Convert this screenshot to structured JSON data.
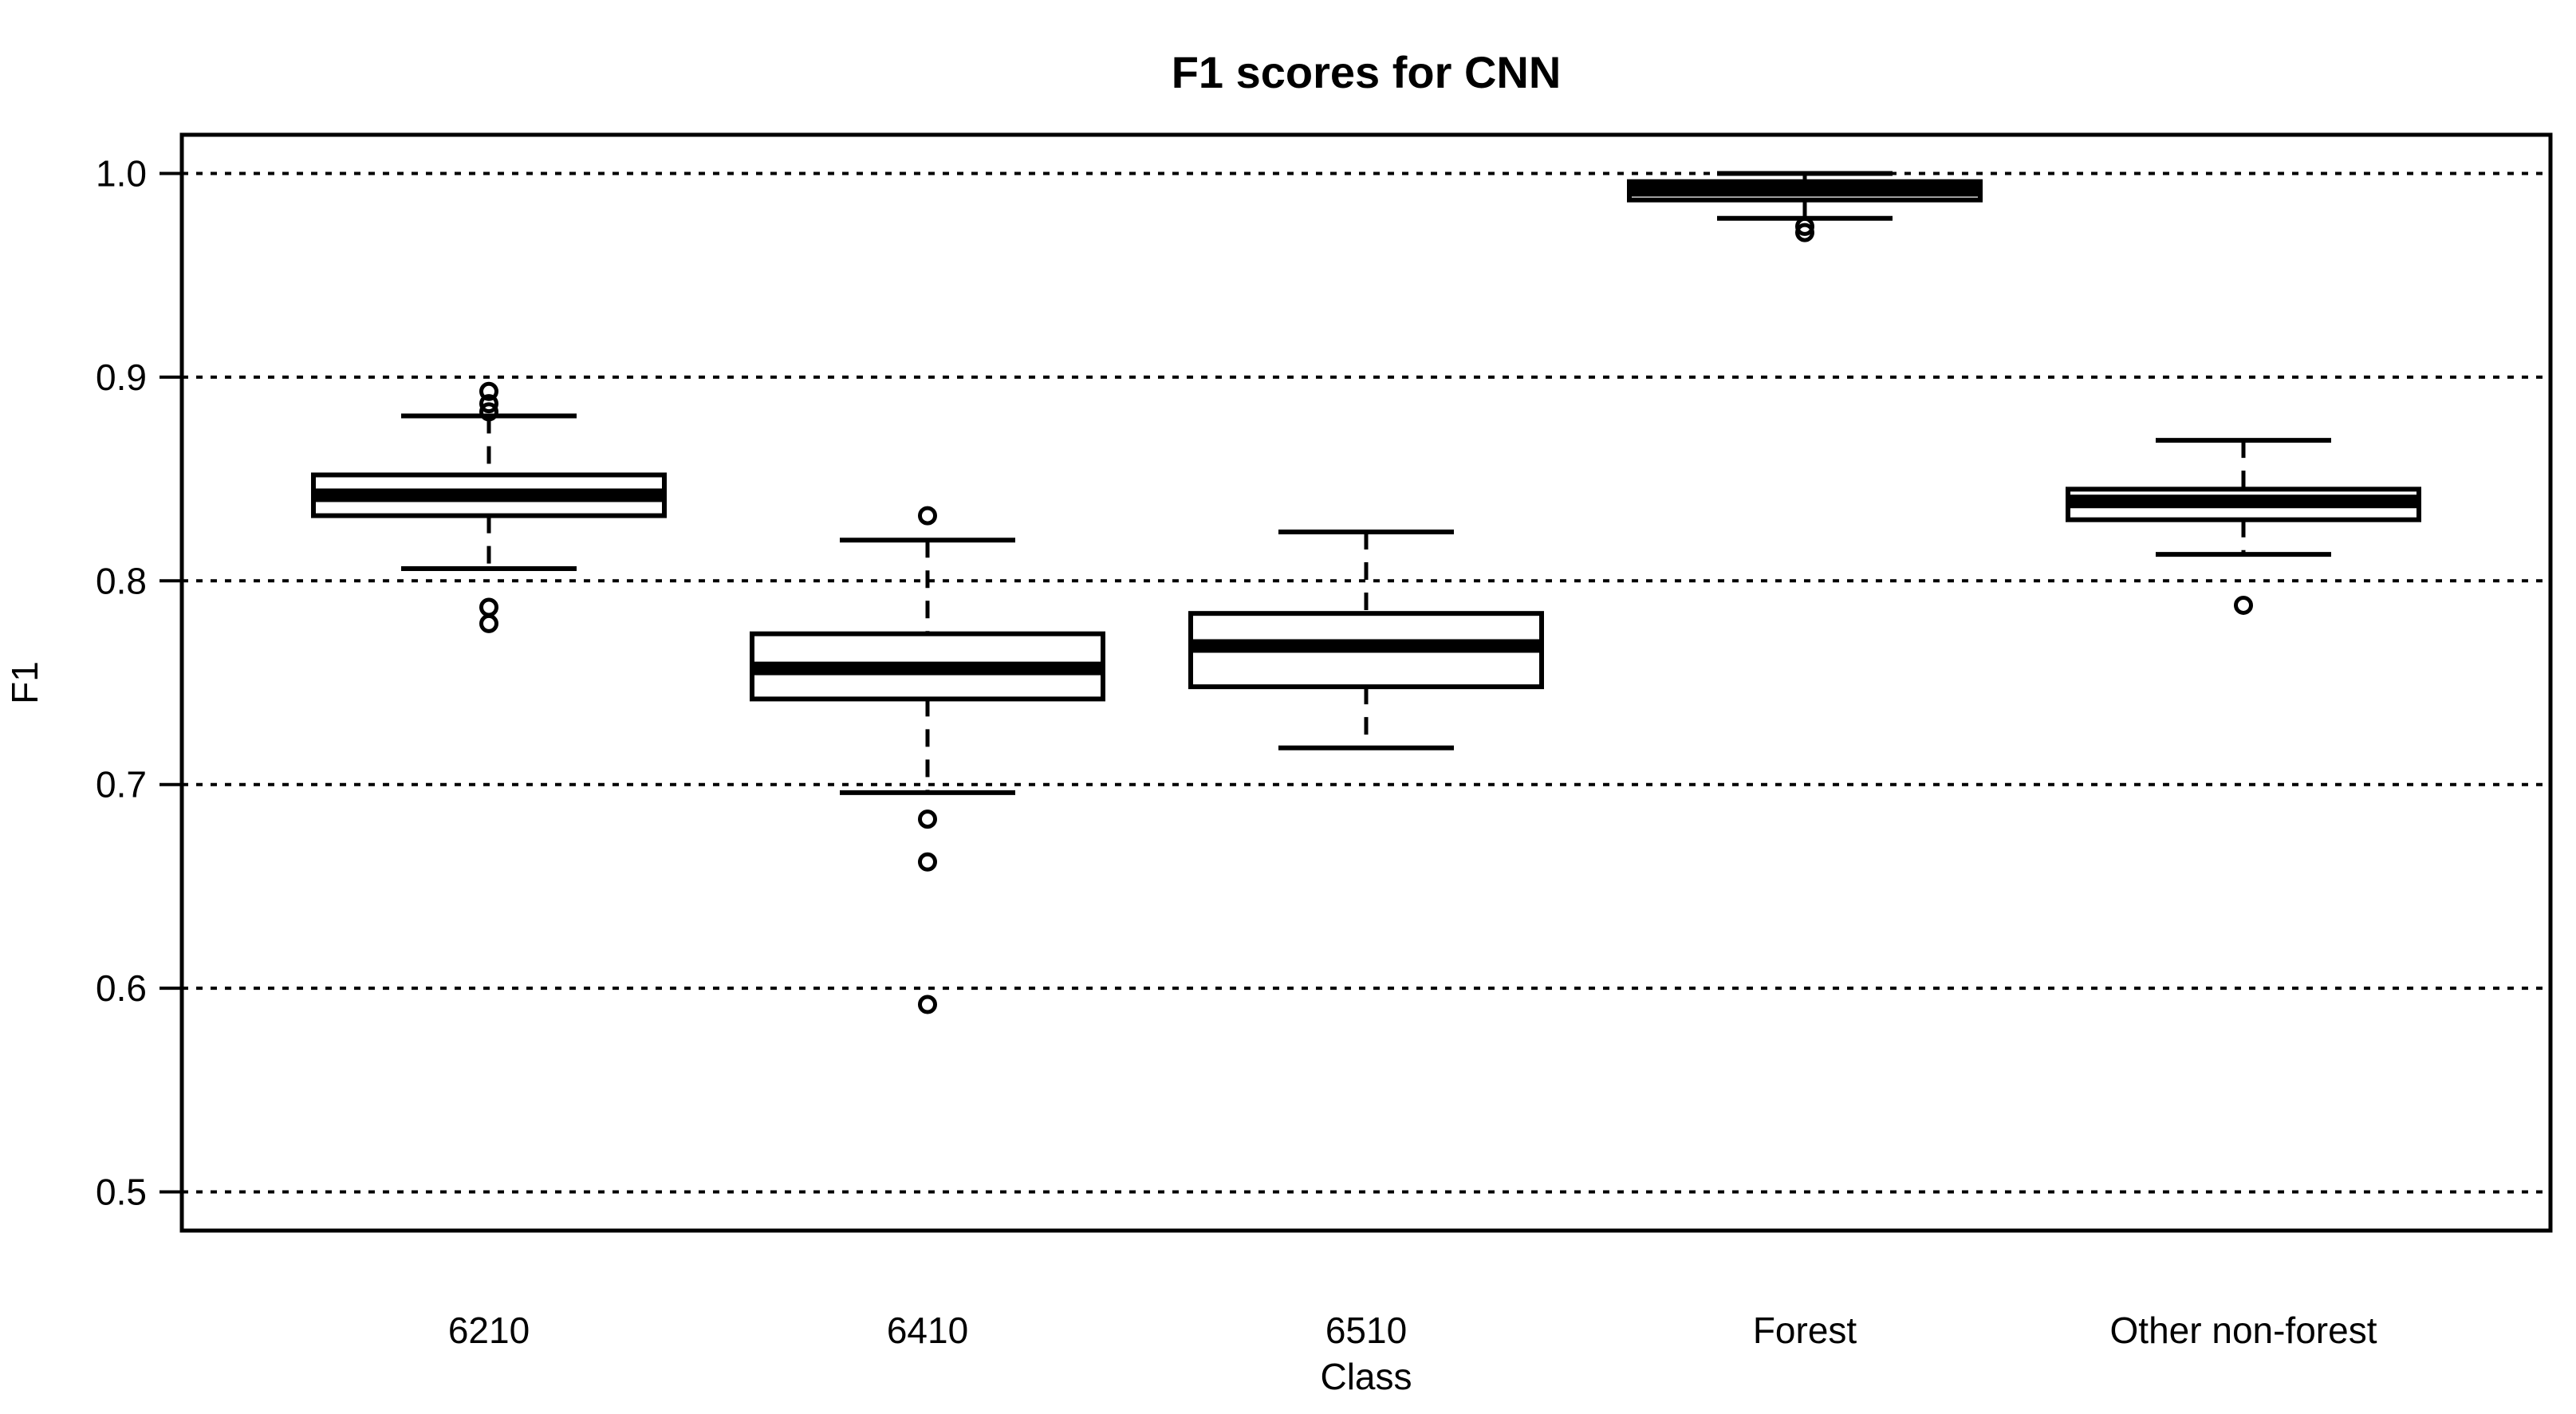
{
  "page": {
    "background": "#ffffff"
  },
  "chart_data": {
    "type": "boxplot",
    "title": "F1 scores for CNN",
    "xlabel": "Class",
    "ylabel": "F1",
    "categories": [
      "6210",
      "6410",
      "6510",
      "Forest",
      "Other non-forest"
    ],
    "series": [
      {
        "name": "6210",
        "whisker_low": 0.806,
        "q1": 0.832,
        "median": 0.842,
        "q3": 0.852,
        "whisker_high": 0.881,
        "outliers": [
          0.893,
          0.887,
          0.883,
          0.787,
          0.779
        ]
      },
      {
        "name": "6410",
        "whisker_low": 0.696,
        "q1": 0.742,
        "median": 0.757,
        "q3": 0.774,
        "whisker_high": 0.82,
        "outliers": [
          0.832,
          0.683,
          0.662,
          0.592
        ]
      },
      {
        "name": "6510",
        "whisker_low": 0.718,
        "q1": 0.748,
        "median": 0.768,
        "q3": 0.784,
        "whisker_high": 0.824,
        "outliers": []
      },
      {
        "name": "Forest",
        "whisker_low": 0.978,
        "q1": 0.987,
        "median": 0.992,
        "q3": 0.996,
        "whisker_high": 1.0,
        "outliers": [
          0.974,
          0.971
        ]
      },
      {
        "name": "Other non-forest",
        "whisker_low": 0.813,
        "q1": 0.83,
        "median": 0.839,
        "q3": 0.845,
        "whisker_high": 0.869,
        "outliers": [
          0.788
        ]
      }
    ],
    "y_ticks": [
      {
        "value": 1.0,
        "label": "1.0"
      },
      {
        "value": 0.9,
        "label": "0.9"
      },
      {
        "value": 0.8,
        "label": "0.8"
      },
      {
        "value": 0.7,
        "label": "0.7"
      },
      {
        "value": 0.6,
        "label": "0.6"
      },
      {
        "value": 0.5,
        "label": "0.5"
      }
    ],
    "ylim": [
      0.481,
      1.019
    ],
    "xlim_units": [
      0.3,
      5.7
    ],
    "box_halfwidth_units": 0.4,
    "cap_halfwidth_units": 0.2,
    "grid": "dotted-horizontal-at-each-tick",
    "legend_position": "none",
    "colors": {
      "foreground": "#000000",
      "background": "#ffffff"
    }
  }
}
